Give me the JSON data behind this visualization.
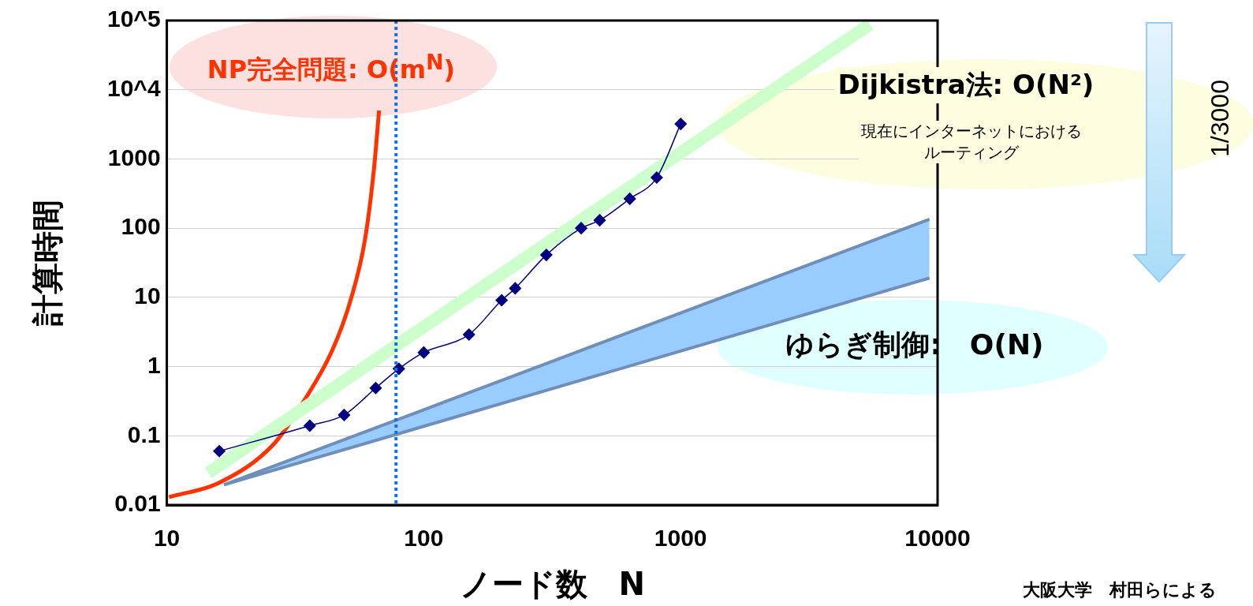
{
  "chart_data": {
    "type": "line",
    "xlabel": "ノード数　N",
    "ylabel": "計算時間",
    "log": "xy",
    "grid": "y",
    "legend": false,
    "xlim": [
      10,
      10000
    ],
    "xticks": [
      10,
      100,
      1000,
      10000
    ],
    "ylim": [
      0.01,
      100000
    ],
    "yticks": [
      0.01,
      0.1,
      1,
      10,
      100,
      1000,
      {
        "value": 10000,
        "label": "10^4"
      },
      {
        "value": 100000,
        "label": "10^5"
      }
    ],
    "series": [
      {
        "name": "NP完全問題: O(m$^{N}$)",
        "type": "line",
        "color": "#ff3300",
        "marker": "none",
        "x": [
          10.2,
          16,
          26,
          34,
          44,
          52,
          59,
          64,
          67
        ],
        "values": [
          0.013,
          0.021,
          0.075,
          0.31,
          1.7,
          9.3,
          67,
          713,
          5000
        ]
      },
      {
        "name": "Dijkistra法: O(N²)",
        "type": "line",
        "color": "#ccffcc",
        "marker": "none",
        "x": [
          14.5,
          5450
        ],
        "values": [
          0.029,
          88000
        ]
      },
      {
        "type": "line",
        "color": "#000080",
        "marker": "diamond",
        "x": [
          16,
          36,
          49,
          65,
          80,
          100,
          150,
          201,
          227,
          300,
          410,
          484,
          634,
          807,
          1000
        ],
        "values": [
          0.06,
          0.14,
          0.2,
          0.49,
          0.93,
          1.6,
          2.9,
          9.1,
          13.5,
          41,
          100,
          130,
          266,
          538,
          3200
        ]
      },
      {
        "name": "ゆらぎ制御:　O(N)",
        "type": "line",
        "color": "#6f8fb8",
        "marker": "none",
        "x": [
          16.7,
          100,
          1000,
          9300
        ],
        "values": [
          0.0196,
          0.238,
          5.96,
          134
        ],
        "lower": [
          0.0196,
          0.137,
          1.68,
          19
        ],
        "upper": [
          0.0196,
          0.238,
          5.96,
          134
        ]
      },
      {
        "type": "line",
        "color": "#6f8fb8",
        "marker": "none",
        "x": [
          16.7,
          100,
          1000,
          9300
        ],
        "values": [
          0.0196,
          0.137,
          1.68,
          19
        ]
      }
    ],
    "ref_lines": [
      {
        "axis": "x",
        "value": 78,
        "color": "#1a6fe0",
        "line_style": "dotted"
      }
    ],
    "annotations": [
      "現在にインターネットにおけるルーティング",
      "1/3000",
      "大阪大学　村田らによる"
    ]
  }
}
